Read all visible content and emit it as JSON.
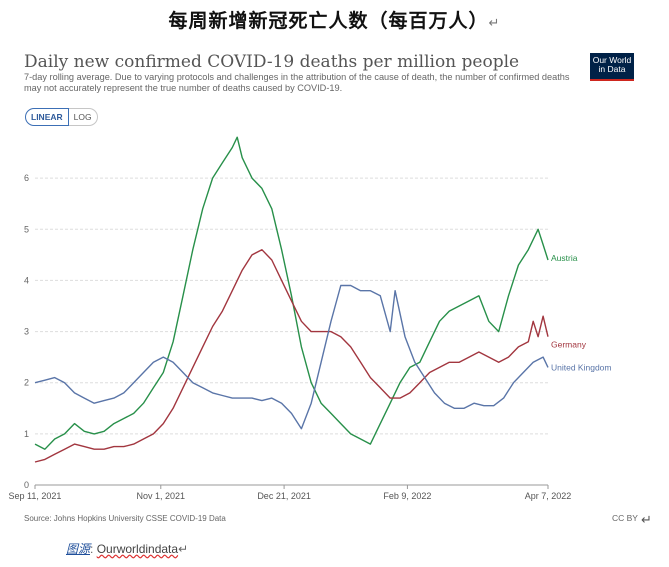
{
  "document": {
    "heading": "每周新增新冠死亡人数（每百万人）",
    "return_mark": "↵",
    "figure_source_label": "图源",
    "figure_source_value": "Ourworldindata"
  },
  "owid_logo": {
    "line1": "Our World",
    "line2": "in Data"
  },
  "toggle": {
    "linear": "LINEAR",
    "log": "LOG"
  },
  "license": "CC BY",
  "chart_data": {
    "type": "line",
    "title": "Daily new confirmed COVID-19 deaths per million people",
    "subtitle": "7-day rolling average. Due to varying protocols and challenges in the attribution of the cause of death, the number of confirmed deaths may not accurately represent the true number of deaths caused by COVID-19.",
    "source": "Source: Johns Hopkins University CSSE COVID-19 Data",
    "x_range": [
      "2021-09-11",
      "2022-04-07"
    ],
    "x_ticks": [
      "Sep 11, 2021",
      "Nov 1, 2021",
      "Dec 21, 2021",
      "Feb 9, 2022",
      "Apr 7, 2022"
    ],
    "y_ticks": [
      0,
      1,
      2,
      3,
      4,
      5,
      6
    ],
    "ylim": [
      0,
      7
    ],
    "grid": true,
    "legend": "line-end labels",
    "series": [
      {
        "name": "Austria",
        "color": "#28904a",
        "points": [
          [
            "2021-09-11",
            0.8
          ],
          [
            "2021-09-15",
            0.7
          ],
          [
            "2021-09-19",
            0.9
          ],
          [
            "2021-09-23",
            1.0
          ],
          [
            "2021-09-27",
            1.2
          ],
          [
            "2021-10-01",
            1.05
          ],
          [
            "2021-10-05",
            1.0
          ],
          [
            "2021-10-09",
            1.05
          ],
          [
            "2021-10-13",
            1.2
          ],
          [
            "2021-10-17",
            1.3
          ],
          [
            "2021-10-21",
            1.4
          ],
          [
            "2021-10-25",
            1.6
          ],
          [
            "2021-10-29",
            1.9
          ],
          [
            "2021-11-02",
            2.2
          ],
          [
            "2021-11-06",
            2.8
          ],
          [
            "2021-11-10",
            3.7
          ],
          [
            "2021-11-14",
            4.6
          ],
          [
            "2021-11-18",
            5.4
          ],
          [
            "2021-11-22",
            6.0
          ],
          [
            "2021-11-26",
            6.3
          ],
          [
            "2021-11-30",
            6.6
          ],
          [
            "2021-12-02",
            6.8
          ],
          [
            "2021-12-04",
            6.4
          ],
          [
            "2021-12-08",
            6.0
          ],
          [
            "2021-12-12",
            5.8
          ],
          [
            "2021-12-16",
            5.4
          ],
          [
            "2021-12-20",
            4.6
          ],
          [
            "2021-12-24",
            3.7
          ],
          [
            "2021-12-28",
            2.7
          ],
          [
            "2022-01-01",
            2.0
          ],
          [
            "2022-01-05",
            1.6
          ],
          [
            "2022-01-09",
            1.4
          ],
          [
            "2022-01-13",
            1.2
          ],
          [
            "2022-01-17",
            1.0
          ],
          [
            "2022-01-21",
            0.9
          ],
          [
            "2022-01-25",
            0.8
          ],
          [
            "2022-01-29",
            1.2
          ],
          [
            "2022-02-02",
            1.6
          ],
          [
            "2022-02-06",
            2.0
          ],
          [
            "2022-02-10",
            2.3
          ],
          [
            "2022-02-14",
            2.4
          ],
          [
            "2022-02-18",
            2.8
          ],
          [
            "2022-02-22",
            3.2
          ],
          [
            "2022-02-26",
            3.4
          ],
          [
            "2022-03-02",
            3.5
          ],
          [
            "2022-03-06",
            3.6
          ],
          [
            "2022-03-10",
            3.7
          ],
          [
            "2022-03-14",
            3.2
          ],
          [
            "2022-03-18",
            3.0
          ],
          [
            "2022-03-22",
            3.7
          ],
          [
            "2022-03-26",
            4.3
          ],
          [
            "2022-03-30",
            4.6
          ],
          [
            "2022-04-03",
            5.0
          ],
          [
            "2022-04-05",
            4.7
          ],
          [
            "2022-04-07",
            4.4
          ]
        ]
      },
      {
        "name": "Germany",
        "color": "#a2363f",
        "points": [
          [
            "2021-09-11",
            0.45
          ],
          [
            "2021-09-15",
            0.5
          ],
          [
            "2021-09-19",
            0.6
          ],
          [
            "2021-09-23",
            0.7
          ],
          [
            "2021-09-27",
            0.8
          ],
          [
            "2021-10-01",
            0.75
          ],
          [
            "2021-10-05",
            0.7
          ],
          [
            "2021-10-09",
            0.7
          ],
          [
            "2021-10-13",
            0.75
          ],
          [
            "2021-10-17",
            0.75
          ],
          [
            "2021-10-21",
            0.8
          ],
          [
            "2021-10-25",
            0.9
          ],
          [
            "2021-10-29",
            1.0
          ],
          [
            "2021-11-02",
            1.2
          ],
          [
            "2021-11-06",
            1.5
          ],
          [
            "2021-11-10",
            1.9
          ],
          [
            "2021-11-14",
            2.3
          ],
          [
            "2021-11-18",
            2.7
          ],
          [
            "2021-11-22",
            3.1
          ],
          [
            "2021-11-26",
            3.4
          ],
          [
            "2021-11-30",
            3.8
          ],
          [
            "2021-12-04",
            4.2
          ],
          [
            "2021-12-08",
            4.5
          ],
          [
            "2021-12-12",
            4.6
          ],
          [
            "2021-12-16",
            4.4
          ],
          [
            "2021-12-20",
            4.0
          ],
          [
            "2021-12-24",
            3.6
          ],
          [
            "2021-12-28",
            3.2
          ],
          [
            "2022-01-01",
            3.0
          ],
          [
            "2022-01-05",
            3.0
          ],
          [
            "2022-01-09",
            3.0
          ],
          [
            "2022-01-13",
            2.9
          ],
          [
            "2022-01-17",
            2.7
          ],
          [
            "2022-01-21",
            2.4
          ],
          [
            "2022-01-25",
            2.1
          ],
          [
            "2022-01-29",
            1.9
          ],
          [
            "2022-02-02",
            1.7
          ],
          [
            "2022-02-06",
            1.7
          ],
          [
            "2022-02-10",
            1.8
          ],
          [
            "2022-02-14",
            2.0
          ],
          [
            "2022-02-18",
            2.2
          ],
          [
            "2022-02-22",
            2.3
          ],
          [
            "2022-02-26",
            2.4
          ],
          [
            "2022-03-02",
            2.4
          ],
          [
            "2022-03-06",
            2.5
          ],
          [
            "2022-03-10",
            2.6
          ],
          [
            "2022-03-14",
            2.5
          ],
          [
            "2022-03-18",
            2.4
          ],
          [
            "2022-03-22",
            2.5
          ],
          [
            "2022-03-26",
            2.7
          ],
          [
            "2022-03-30",
            2.8
          ],
          [
            "2022-04-01",
            3.2
          ],
          [
            "2022-04-03",
            2.9
          ],
          [
            "2022-04-05",
            3.3
          ],
          [
            "2022-04-07",
            2.9
          ]
        ]
      },
      {
        "name": "United Kingdom",
        "color": "#5a75a8",
        "points": [
          [
            "2021-09-11",
            2.0
          ],
          [
            "2021-09-15",
            2.05
          ],
          [
            "2021-09-19",
            2.1
          ],
          [
            "2021-09-23",
            2.0
          ],
          [
            "2021-09-27",
            1.8
          ],
          [
            "2021-10-01",
            1.7
          ],
          [
            "2021-10-05",
            1.6
          ],
          [
            "2021-10-09",
            1.65
          ],
          [
            "2021-10-13",
            1.7
          ],
          [
            "2021-10-17",
            1.8
          ],
          [
            "2021-10-21",
            2.0
          ],
          [
            "2021-10-25",
            2.2
          ],
          [
            "2021-10-29",
            2.4
          ],
          [
            "2021-11-02",
            2.5
          ],
          [
            "2021-11-06",
            2.4
          ],
          [
            "2021-11-10",
            2.2
          ],
          [
            "2021-11-14",
            2.0
          ],
          [
            "2021-11-18",
            1.9
          ],
          [
            "2021-11-22",
            1.8
          ],
          [
            "2021-11-26",
            1.75
          ],
          [
            "2021-11-30",
            1.7
          ],
          [
            "2021-12-04",
            1.7
          ],
          [
            "2021-12-08",
            1.7
          ],
          [
            "2021-12-12",
            1.65
          ],
          [
            "2021-12-16",
            1.7
          ],
          [
            "2021-12-20",
            1.6
          ],
          [
            "2021-12-24",
            1.4
          ],
          [
            "2021-12-28",
            1.1
          ],
          [
            "2022-01-01",
            1.6
          ],
          [
            "2022-01-05",
            2.4
          ],
          [
            "2022-01-09",
            3.2
          ],
          [
            "2022-01-13",
            3.9
          ],
          [
            "2022-01-17",
            3.9
          ],
          [
            "2022-01-21",
            3.8
          ],
          [
            "2022-01-25",
            3.8
          ],
          [
            "2022-01-29",
            3.7
          ],
          [
            "2022-02-02",
            3.0
          ],
          [
            "2022-02-04",
            3.8
          ],
          [
            "2022-02-08",
            2.9
          ],
          [
            "2022-02-12",
            2.4
          ],
          [
            "2022-02-16",
            2.1
          ],
          [
            "2022-02-20",
            1.8
          ],
          [
            "2022-02-24",
            1.6
          ],
          [
            "2022-02-28",
            1.5
          ],
          [
            "2022-03-04",
            1.5
          ],
          [
            "2022-03-08",
            1.6
          ],
          [
            "2022-03-12",
            1.55
          ],
          [
            "2022-03-16",
            1.55
          ],
          [
            "2022-03-20",
            1.7
          ],
          [
            "2022-03-24",
            2.0
          ],
          [
            "2022-03-28",
            2.2
          ],
          [
            "2022-04-01",
            2.4
          ],
          [
            "2022-04-05",
            2.5
          ],
          [
            "2022-04-07",
            2.3
          ]
        ]
      }
    ]
  }
}
